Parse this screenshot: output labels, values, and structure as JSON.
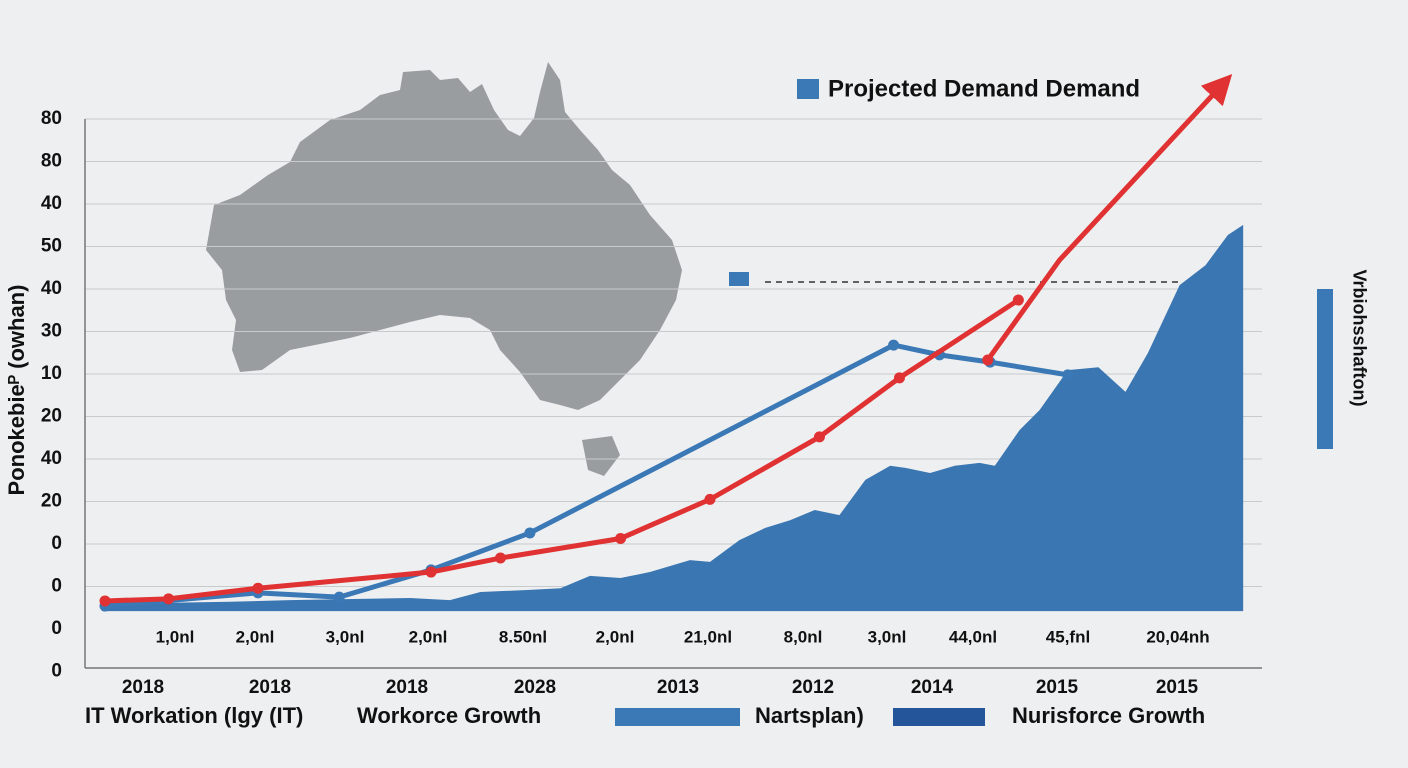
{
  "chart_data": {
    "type": "line",
    "legend_title": "Projected Demand Demand",
    "y_axis_title": "Ponokebieᴾ (owhan)",
    "right_label": "Vrbiohsshafton)",
    "y_labels": [
      "80",
      "80",
      "40",
      "50",
      "40",
      "30",
      "10",
      "20",
      "40",
      "20",
      "0",
      "0",
      "0",
      "0"
    ],
    "ylim": [
      0,
      13
    ],
    "xlim": [
      0,
      100
    ],
    "categories": [
      "2018",
      "2018",
      "2018",
      "2028",
      "2013",
      "2012",
      "2014",
      "2015",
      "2015"
    ],
    "x_annotations": [
      "1,0nl",
      "2,0nl",
      "3,0nl",
      "2,0nl",
      "8.50nl",
      "2,0nl",
      "21,0nl",
      "8,0nl",
      "3,0nl",
      "44,0nl",
      "45,fnl",
      "20,04nh"
    ],
    "bottom_legend": [
      "IT Workation (lgy (IT)",
      "Workorce Growth",
      "Nartsplan)",
      "Nurisforce Growth"
    ],
    "grid": true,
    "series": [
      {
        "kind": "area",
        "color": "#3a76b2",
        "baseline": 1.42,
        "x": [
          1.7,
          12.3,
          17.4,
          27.6,
          31.0,
          33.6,
          37.8,
          40.4,
          42.9,
          45.5,
          48.0,
          51.4,
          53.1,
          55.6,
          57.8,
          59.9,
          62.0,
          64.1,
          66.3,
          68.4,
          69.7,
          71.8,
          73.9,
          76.0,
          77.3,
          79.4,
          81.1,
          83.5,
          86.1,
          88.4,
          90.3,
          93.0,
          95.2,
          97.1,
          98.4
        ],
        "values": [
          1.59,
          1.64,
          1.68,
          1.73,
          1.68,
          1.87,
          1.92,
          1.96,
          2.25,
          2.2,
          2.34,
          2.62,
          2.58,
          3.09,
          3.38,
          3.56,
          3.8,
          3.68,
          4.51,
          4.84,
          4.79,
          4.67,
          4.84,
          4.91,
          4.84,
          5.68,
          6.15,
          7.09,
          7.16,
          6.58,
          7.49,
          9.09,
          9.56,
          10.27,
          10.51
        ]
      },
      {
        "kind": "line",
        "color": "#3b78b6",
        "x": [
          1.7,
          14.7,
          21.6,
          29.4,
          37.8,
          68.7,
          72.6,
          76.9,
          83.5
        ],
        "values": [
          1.54,
          1.85,
          1.75,
          2.39,
          3.26,
          7.68,
          7.45,
          7.28,
          6.98
        ]
      },
      {
        "kind": "line",
        "color": "#e03232",
        "x": [
          1.7,
          7.1,
          14.7,
          29.4,
          35.3,
          45.5,
          53.1,
          62.4,
          69.2,
          79.3
        ],
        "values": [
          1.66,
          1.71,
          1.96,
          2.34,
          2.67,
          3.13,
          4.05,
          5.52,
          6.91,
          8.74
        ]
      },
      {
        "kind": "arrow",
        "color": "#e03232",
        "x": [
          76.7,
          82.8,
          96.6
        ],
        "values": [
          7.33,
          9.68,
          13.8
        ]
      }
    ]
  }
}
